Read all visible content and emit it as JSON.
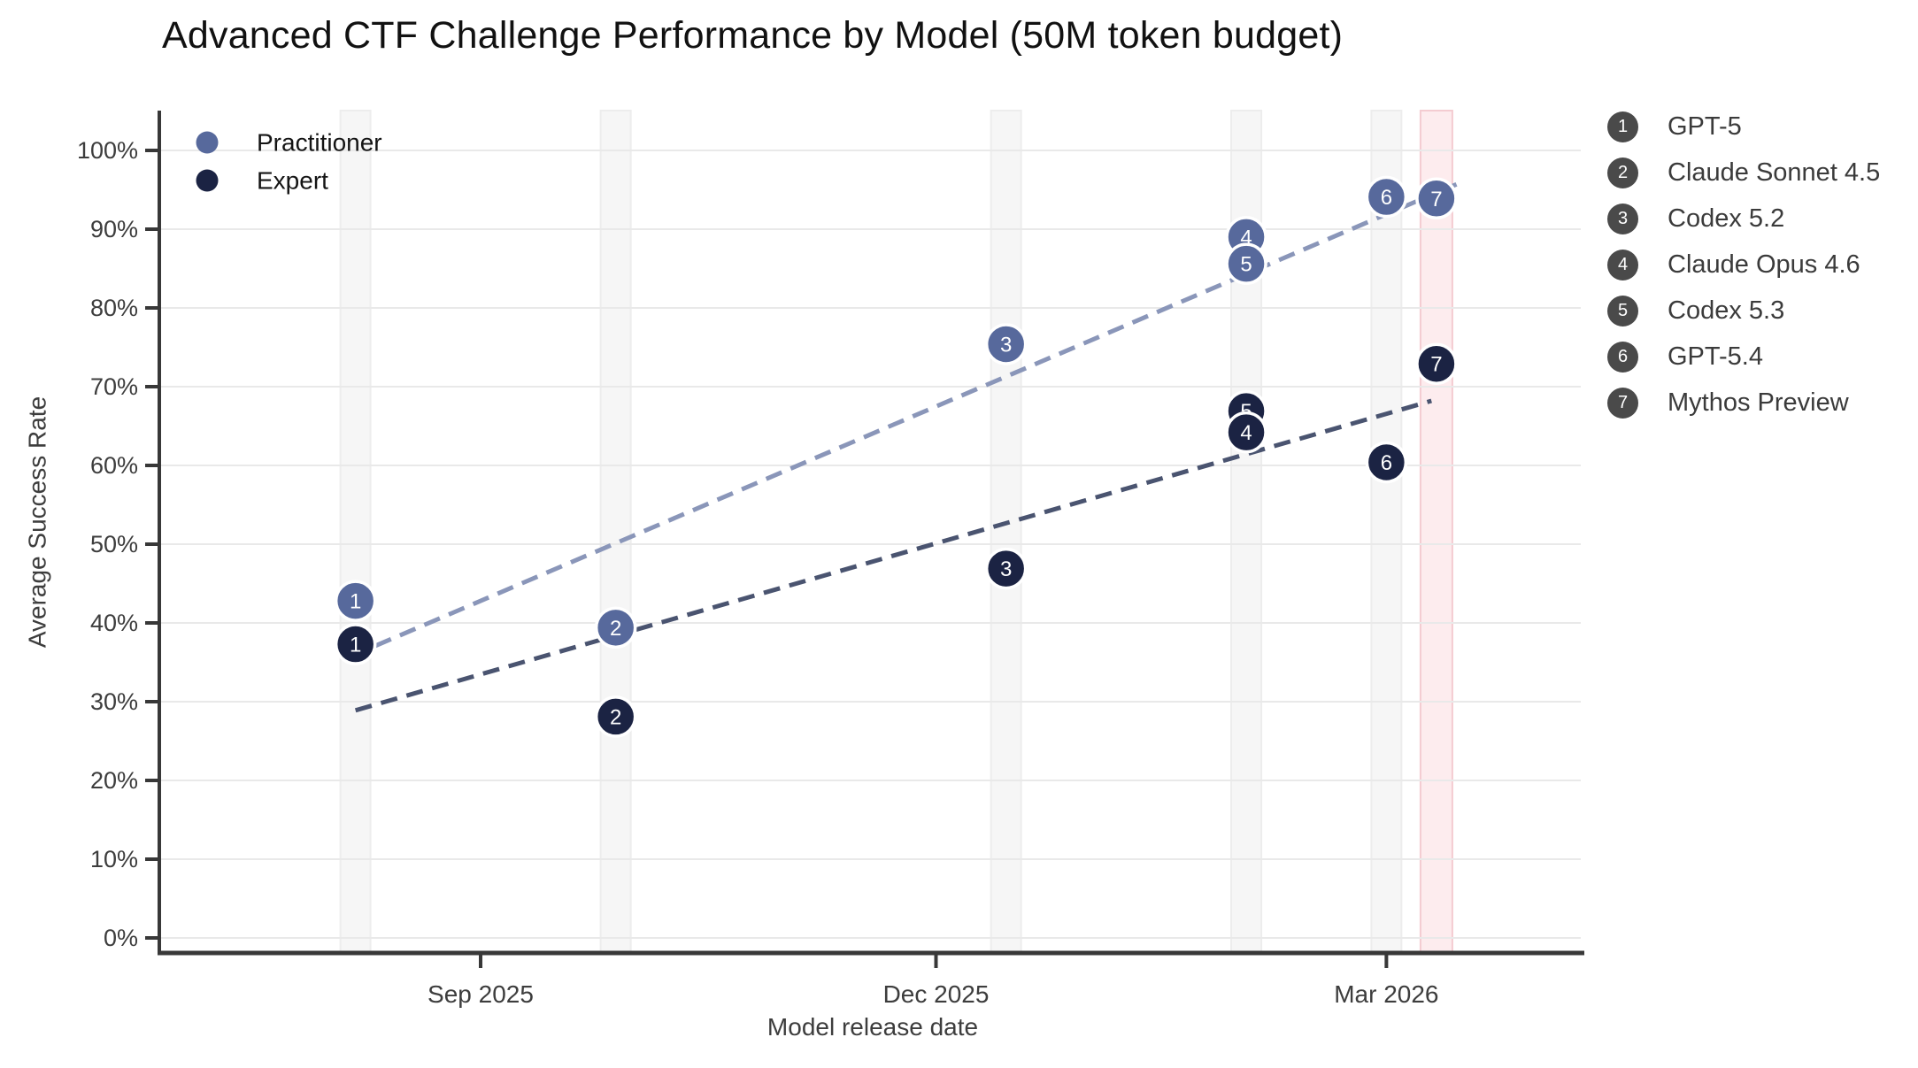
{
  "header": {
    "title": "Advanced CTF Challenge Performance by Model (50M token budget)"
  },
  "chart_data": {
    "type": "scatter",
    "title": "Advanced CTF Challenge Performance by Model (50M token budget)",
    "xlabel": "Model release date",
    "ylabel": "Average Success Rate",
    "x_ticks": [
      {
        "label": "Sep 2025",
        "date": "2025-09-01"
      },
      {
        "label": "Dec 2025",
        "date": "2025-12-01"
      },
      {
        "label": "Mar 2026",
        "date": "2026-03-01"
      }
    ],
    "y_axis": {
      "min": 0,
      "max": 100,
      "step": 10,
      "suffix": "%"
    },
    "grid": true,
    "legend_position": "top-left",
    "series": [
      {
        "name": "Practitioner",
        "color": "#57699c",
        "trend_color": "#8a96b9"
      },
      {
        "name": "Expert",
        "color": "#1b2343",
        "trend_color": "#4a5470"
      }
    ],
    "models": [
      {
        "num": 1,
        "name": "GPT-5",
        "release_date": "2025-08-07",
        "practitioner_pct": 42.8,
        "expert_pct": 37.3
      },
      {
        "num": 2,
        "name": "Claude Sonnet 4.5",
        "release_date": "2025-09-28",
        "practitioner_pct": 39.4,
        "expert_pct": 28.1
      },
      {
        "num": 3,
        "name": "Codex 5.2",
        "release_date": "2025-12-15",
        "practitioner_pct": 75.4,
        "expert_pct": 46.9
      },
      {
        "num": 4,
        "name": "Claude Opus 4.6",
        "release_date": "2026-02-01",
        "practitioner_pct": 89.0,
        "expert_pct": 64.2
      },
      {
        "num": 5,
        "name": "Codex 5.3",
        "release_date": "2026-02-01",
        "practitioner_pct": 85.6,
        "expert_pct": 66.9
      },
      {
        "num": 6,
        "name": "GPT-5.4",
        "release_date": "2026-03-01",
        "practitioner_pct": 94.1,
        "expert_pct": 60.4
      },
      {
        "num": 7,
        "name": "Mythos Preview",
        "release_date": "2026-03-11",
        "practitioner_pct": 93.9,
        "expert_pct": 72.9
      }
    ],
    "highlight_model_num": 7,
    "trendlines": [
      {
        "series": "Practitioner",
        "x1_date": "2025-08-11",
        "y1_pct": 37.1,
        "x2_date": "2026-03-15",
        "y2_pct": 95.7
      },
      {
        "series": "Expert",
        "x1_date": "2025-08-07",
        "y1_pct": 28.9,
        "x2_date": "2026-03-10",
        "y2_pct": 68.2
      }
    ]
  },
  "legend": {
    "items": [
      {
        "label": "Practitioner"
      },
      {
        "label": "Expert"
      }
    ]
  },
  "model_legend": {
    "entries": [
      {
        "num": "1",
        "label": "GPT-5"
      },
      {
        "num": "2",
        "label": "Claude Sonnet 4.5"
      },
      {
        "num": "3",
        "label": "Codex 5.2"
      },
      {
        "num": "4",
        "label": "Claude Opus 4.6"
      },
      {
        "num": "5",
        "label": "Codex 5.3"
      },
      {
        "num": "6",
        "label": "GPT-5.4"
      },
      {
        "num": "7",
        "label": "Mythos Preview"
      }
    ]
  },
  "colors": {
    "background": "#ffffff",
    "title_text": "#111111",
    "axis_line": "#383838",
    "tick_text": "#3d3d3d",
    "axis_title_text": "#3d3d3d",
    "gridline": "#e9e9e9",
    "band_gray_fill": "#f6f6f6",
    "band_gray_edge": "#ededed",
    "band_highlight_fill": "#fdecee",
    "band_highlight_edge": "#f4ccd1",
    "point_stroke": "#ffffff",
    "point_number_text": "#ffffff",
    "legend_text": "#141414",
    "badge_fill": "#4a4a4a",
    "badge_text": "#ffffff",
    "model_label_text": "#3b3b3b"
  }
}
